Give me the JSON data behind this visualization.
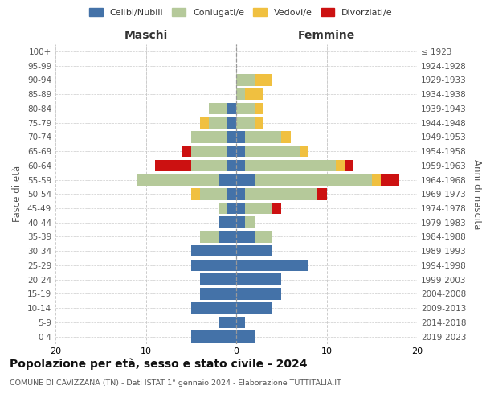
{
  "age_groups": [
    "0-4",
    "5-9",
    "10-14",
    "15-19",
    "20-24",
    "25-29",
    "30-34",
    "35-39",
    "40-44",
    "45-49",
    "50-54",
    "55-59",
    "60-64",
    "65-69",
    "70-74",
    "75-79",
    "80-84",
    "85-89",
    "90-94",
    "95-99",
    "100+"
  ],
  "birth_years": [
    "2019-2023",
    "2014-2018",
    "2009-2013",
    "2004-2008",
    "1999-2003",
    "1994-1998",
    "1989-1993",
    "1984-1988",
    "1979-1983",
    "1974-1978",
    "1969-1973",
    "1964-1968",
    "1959-1963",
    "1954-1958",
    "1949-1953",
    "1944-1948",
    "1939-1943",
    "1934-1938",
    "1929-1933",
    "1924-1928",
    "≤ 1923"
  ],
  "colors": {
    "celibi": "#4472a8",
    "coniugati": "#b5c99a",
    "vedovi": "#f0c040",
    "divorziati": "#cc1111"
  },
  "males": {
    "celibi": [
      5,
      2,
      5,
      4,
      4,
      5,
      5,
      2,
      2,
      1,
      1,
      2,
      1,
      1,
      1,
      1,
      1,
      0,
      0,
      0,
      0
    ],
    "coniugati": [
      0,
      0,
      0,
      0,
      0,
      0,
      0,
      2,
      0,
      1,
      3,
      9,
      4,
      4,
      4,
      2,
      2,
      0,
      0,
      0,
      0
    ],
    "vedovi": [
      0,
      0,
      0,
      0,
      0,
      0,
      0,
      0,
      0,
      0,
      1,
      0,
      0,
      0,
      0,
      1,
      0,
      0,
      0,
      0,
      0
    ],
    "divorziati": [
      0,
      0,
      0,
      0,
      0,
      0,
      0,
      0,
      0,
      0,
      0,
      0,
      4,
      1,
      0,
      0,
      0,
      0,
      0,
      0,
      0
    ]
  },
  "females": {
    "celibi": [
      2,
      1,
      4,
      5,
      5,
      8,
      4,
      2,
      1,
      1,
      1,
      2,
      1,
      1,
      1,
      0,
      0,
      0,
      0,
      0,
      0
    ],
    "coniugati": [
      0,
      0,
      0,
      0,
      0,
      0,
      0,
      2,
      1,
      3,
      8,
      13,
      10,
      6,
      4,
      2,
      2,
      1,
      2,
      0,
      0
    ],
    "vedovi": [
      0,
      0,
      0,
      0,
      0,
      0,
      0,
      0,
      0,
      0,
      0,
      1,
      1,
      1,
      1,
      1,
      1,
      2,
      2,
      0,
      0
    ],
    "divorziati": [
      0,
      0,
      0,
      0,
      0,
      0,
      0,
      0,
      0,
      1,
      1,
      2,
      1,
      0,
      0,
      0,
      0,
      0,
      0,
      0,
      0
    ]
  },
  "xlim": 20,
  "title": "Popolazione per età, sesso e stato civile - 2024",
  "subtitle": "COMUNE DI CAVIZZANA (TN) - Dati ISTAT 1° gennaio 2024 - Elaborazione TUTTITALIA.IT",
  "xlabel_left": "Maschi",
  "xlabel_right": "Femmine",
  "ylabel_left": "Fasce di età",
  "ylabel_right": "Anni di nascita",
  "legend_labels": [
    "Celibi/Nubili",
    "Coniugati/e",
    "Vedovi/e",
    "Divorziati/e"
  ],
  "background_color": "#ffffff",
  "grid_color": "#cccccc"
}
